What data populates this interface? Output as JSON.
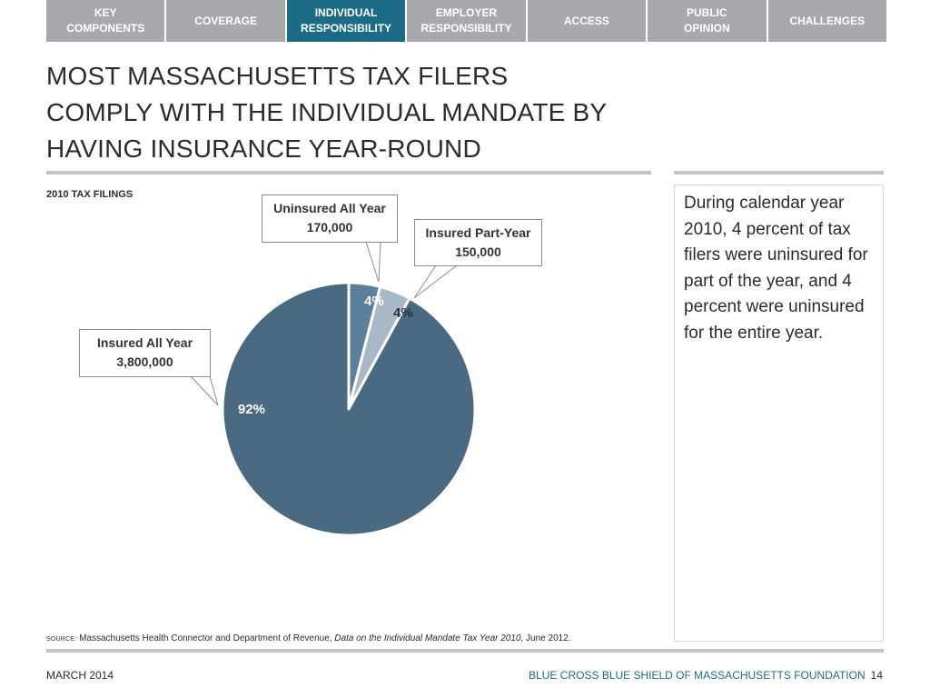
{
  "nav": {
    "tabs": [
      {
        "label": "KEY\nCOMPONENTS"
      },
      {
        "label": "COVERAGE"
      },
      {
        "label": "INDIVIDUAL\nRESPONSIBILITY"
      },
      {
        "label": "EMPLOYER\nRESPONSIBILITY"
      },
      {
        "label": "ACCESS"
      },
      {
        "label": "PUBLIC\nOPINION"
      },
      {
        "label": "CHALLENGES"
      }
    ],
    "active_index": 2
  },
  "title": {
    "line1": "MOST MASSACHUSETTS TAX FILERS",
    "line2": "COMPLY WITH THE INDIVIDUAL MANDATE BY",
    "line3": "HAVING INSURANCE YEAR-ROUND"
  },
  "chart_subtitle": "2010 TAX FILINGS",
  "chart_data": {
    "type": "pie",
    "slices": [
      {
        "name": "Insured All Year",
        "count_label": "3,800,000",
        "value": 3800000,
        "percent": 92,
        "percent_label": "92%",
        "color": "#4a6a82"
      },
      {
        "name": "Uninsured All Year",
        "count_label": "170,000",
        "value": 170000,
        "percent": 4,
        "percent_label": "4%",
        "color": "#5c7f9c"
      },
      {
        "name": "Insured Part-Year",
        "count_label": "150,000",
        "value": 150000,
        "percent": 4,
        "percent_label": "4%",
        "color": "#a8b8c6"
      }
    ]
  },
  "sidebar": {
    "text": "During calendar year 2010, 4 percent of tax filers were uninsured for part of the year, and 4 percent were uninsured for the entire year."
  },
  "source": {
    "label": "SOURCE:",
    "text_before": "Massachusetts Health Connector and Department of Revenue, ",
    "italic": "Data on the Individual Mandate Tax Year 2010,",
    "text_after": " June 2012."
  },
  "footer": {
    "date": "MARCH 2014",
    "org": "BLUE CROSS BLUE SHIELD OF MASSACHUSETTS FOUNDATION",
    "page": "14"
  }
}
